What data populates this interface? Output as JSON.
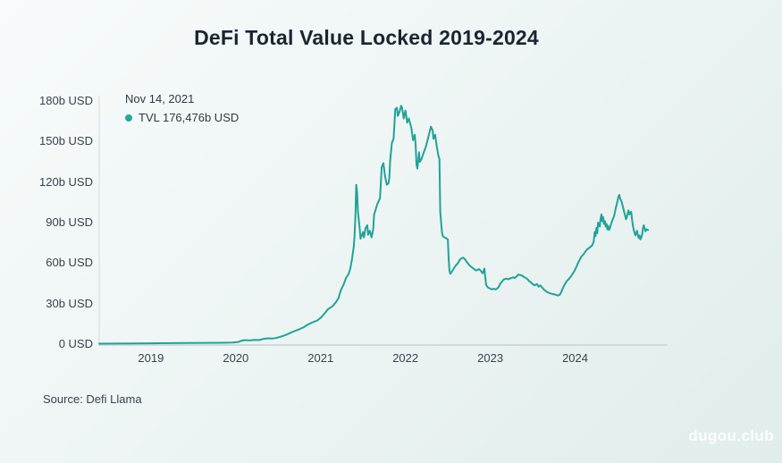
{
  "page": {
    "title": "DeFi Total Value Locked 2019-2024",
    "source_note": "Source: Defi Llama",
    "watermark": "dugou.club"
  },
  "tooltip": {
    "date": "Nov 14, 2021",
    "value_text": "TVL 176,476b USD",
    "marker_color": "#27a79a"
  },
  "colors": {
    "line": "#22a296",
    "x_axis_line": "#c6d3d2",
    "y_axis_line": "#dde7e6",
    "title_text": "#1c2430",
    "tick_text": "#39424b"
  },
  "chart_data": {
    "type": "line",
    "title": "DeFi Total Value Locked 2019-2024",
    "xlabel": "",
    "ylabel": "",
    "x_unit": "year (decimal)",
    "y_unit": "billions USD",
    "xlim": [
      2018.39,
      2025.09
    ],
    "ylim": [
      0,
      180
    ],
    "grid": false,
    "legend_position": "top-left",
    "x_ticks": [
      "2019",
      "2020",
      "2021",
      "2022",
      "2023",
      "2024"
    ],
    "y_ticks": [
      {
        "value": 0,
        "label": "0 USD"
      },
      {
        "value": 30,
        "label": "30b USD"
      },
      {
        "value": 60,
        "label": "60b USD"
      },
      {
        "value": 90,
        "label": "90b USD"
      },
      {
        "value": 120,
        "label": "120b USD"
      },
      {
        "value": 150,
        "label": "150b USD"
      },
      {
        "value": 180,
        "label": "180b USD"
      }
    ],
    "highlighted_point": {
      "date": "Nov 14, 2021",
      "x": 2021.95,
      "value_billions": 176.476
    },
    "series": [
      {
        "name": "TVL",
        "color": "#22a296",
        "points": [
          [
            2018.39,
            0.3
          ],
          [
            2018.57,
            0.4
          ],
          [
            2018.78,
            0.5
          ],
          [
            2018.99,
            0.6
          ],
          [
            2019.2,
            0.7
          ],
          [
            2019.41,
            0.8
          ],
          [
            2019.62,
            0.9
          ],
          [
            2019.84,
            1.0
          ],
          [
            2019.96,
            1.1
          ],
          [
            2020.03,
            1.6
          ],
          [
            2020.07,
            2.6
          ],
          [
            2020.11,
            3.0
          ],
          [
            2020.16,
            2.7
          ],
          [
            2020.22,
            3.2
          ],
          [
            2020.27,
            3.0
          ],
          [
            2020.32,
            3.8
          ],
          [
            2020.37,
            4.3
          ],
          [
            2020.43,
            4.1
          ],
          [
            2020.48,
            4.6
          ],
          [
            2020.53,
            5.5
          ],
          [
            2020.59,
            6.8
          ],
          [
            2020.64,
            8.2
          ],
          [
            2020.69,
            9.5
          ],
          [
            2020.74,
            10.8
          ],
          [
            2020.8,
            12.5
          ],
          [
            2020.85,
            14.5
          ],
          [
            2020.9,
            16.0
          ],
          [
            2020.96,
            17.5
          ],
          [
            2021.01,
            20.0
          ],
          [
            2021.05,
            23.0
          ],
          [
            2021.09,
            26.0
          ],
          [
            2021.14,
            28.0
          ],
          [
            2021.18,
            31.0
          ],
          [
            2021.21,
            34.0
          ],
          [
            2021.24,
            40.0
          ],
          [
            2021.27,
            44.0
          ],
          [
            2021.3,
            49.0
          ],
          [
            2021.33,
            52.0
          ],
          [
            2021.35,
            56.0
          ],
          [
            2021.37,
            63.0
          ],
          [
            2021.39,
            72.0
          ],
          [
            2021.4,
            80.0
          ],
          [
            2021.41,
            95.0
          ],
          [
            2021.42,
            118.0
          ],
          [
            2021.43,
            112.0
          ],
          [
            2021.44,
            98.0
          ],
          [
            2021.46,
            86.0
          ],
          [
            2021.47,
            78.0
          ],
          [
            2021.5,
            83.0
          ],
          [
            2021.51,
            79.0
          ],
          [
            2021.53,
            86.0
          ],
          [
            2021.55,
            88.0
          ],
          [
            2021.56,
            81.0
          ],
          [
            2021.58,
            84.0
          ],
          [
            2021.6,
            79.0
          ],
          [
            2021.62,
            85.0
          ],
          [
            2021.63,
            96.0
          ],
          [
            2021.65,
            100.0
          ],
          [
            2021.67,
            104.0
          ],
          [
            2021.7,
            108.0
          ],
          [
            2021.72,
            131.0
          ],
          [
            2021.74,
            134.0
          ],
          [
            2021.76,
            124.0
          ],
          [
            2021.78,
            118.0
          ],
          [
            2021.8,
            119.0
          ],
          [
            2021.81,
            123.0
          ],
          [
            2021.82,
            136.0
          ],
          [
            2021.84,
            149.0
          ],
          [
            2021.86,
            152.0
          ],
          [
            2021.88,
            174.0
          ],
          [
            2021.9,
            175.0
          ],
          [
            2021.91,
            169.0
          ],
          [
            2021.93,
            172.0
          ],
          [
            2021.95,
            176.5
          ],
          [
            2021.96,
            175.0
          ],
          [
            2021.98,
            167.0
          ],
          [
            2022.0,
            173.0
          ],
          [
            2022.02,
            164.0
          ],
          [
            2022.04,
            167.0
          ],
          [
            2022.07,
            160.0
          ],
          [
            2022.09,
            151.0
          ],
          [
            2022.11,
            155.0
          ],
          [
            2022.12,
            147.0
          ],
          [
            2022.13,
            133.0
          ],
          [
            2022.14,
            130.0
          ],
          [
            2022.16,
            142.0
          ],
          [
            2022.17,
            135.0
          ],
          [
            2022.19,
            137.0
          ],
          [
            2022.21,
            141.0
          ],
          [
            2022.24,
            146.0
          ],
          [
            2022.26,
            151.0
          ],
          [
            2022.28,
            156.0
          ],
          [
            2022.3,
            161.0
          ],
          [
            2022.32,
            158.0
          ],
          [
            2022.33,
            152.0
          ],
          [
            2022.35,
            155.0
          ],
          [
            2022.37,
            146.0
          ],
          [
            2022.39,
            139.0
          ],
          [
            2022.4,
            137.0
          ],
          [
            2022.41,
            98.0
          ],
          [
            2022.43,
            83.0
          ],
          [
            2022.44,
            80.0
          ],
          [
            2022.46,
            79.0
          ],
          [
            2022.48,
            78.5
          ],
          [
            2022.5,
            77.5
          ],
          [
            2022.51,
            62.0
          ],
          [
            2022.52,
            54.0
          ],
          [
            2022.53,
            52.0
          ],
          [
            2022.55,
            54.0
          ],
          [
            2022.57,
            56.0
          ],
          [
            2022.59,
            58.0
          ],
          [
            2022.62,
            60.0
          ],
          [
            2022.64,
            62.5
          ],
          [
            2022.66,
            63.5
          ],
          [
            2022.68,
            64.0
          ],
          [
            2022.7,
            63.0
          ],
          [
            2022.72,
            61.0
          ],
          [
            2022.74,
            59.5
          ],
          [
            2022.76,
            58.0
          ],
          [
            2022.78,
            57.0
          ],
          [
            2022.81,
            55.5
          ],
          [
            2022.83,
            54.5
          ],
          [
            2022.85,
            55.0
          ],
          [
            2022.87,
            55.5
          ],
          [
            2022.89,
            54.0
          ],
          [
            2022.91,
            52.5
          ],
          [
            2022.93,
            56.0
          ],
          [
            2022.94,
            50.0
          ],
          [
            2022.95,
            44.0
          ],
          [
            2022.97,
            42.0
          ],
          [
            2023.0,
            41.0
          ],
          [
            2023.02,
            40.5
          ],
          [
            2023.04,
            41.0
          ],
          [
            2023.06,
            40.5
          ],
          [
            2023.08,
            41.0
          ],
          [
            2023.1,
            42.5
          ],
          [
            2023.12,
            45.0
          ],
          [
            2023.14,
            46.5
          ],
          [
            2023.16,
            48.0
          ],
          [
            2023.19,
            48.5
          ],
          [
            2023.21,
            48.0
          ],
          [
            2023.23,
            48.5
          ],
          [
            2023.25,
            49.0
          ],
          [
            2023.27,
            49.5
          ],
          [
            2023.29,
            49.0
          ],
          [
            2023.31,
            50.0
          ],
          [
            2023.33,
            51.5
          ],
          [
            2023.36,
            51.0
          ],
          [
            2023.38,
            50.5
          ],
          [
            2023.4,
            49.5
          ],
          [
            2023.42,
            49.0
          ],
          [
            2023.44,
            48.0
          ],
          [
            2023.46,
            46.5
          ],
          [
            2023.48,
            45.5
          ],
          [
            2023.5,
            44.5
          ],
          [
            2023.52,
            43.5
          ],
          [
            2023.55,
            44.5
          ],
          [
            2023.57,
            42.5
          ],
          [
            2023.59,
            43.5
          ],
          [
            2023.61,
            42.0
          ],
          [
            2023.63,
            40.5
          ],
          [
            2023.65,
            39.5
          ],
          [
            2023.67,
            38.5
          ],
          [
            2023.69,
            38.0
          ],
          [
            2023.71,
            37.5
          ],
          [
            2023.74,
            37.0
          ],
          [
            2023.76,
            36.8
          ],
          [
            2023.78,
            36.3
          ],
          [
            2023.8,
            36.0
          ],
          [
            2023.82,
            36.5
          ],
          [
            2023.84,
            39.0
          ],
          [
            2023.86,
            42.0
          ],
          [
            2023.88,
            44.5
          ],
          [
            2023.9,
            46.5
          ],
          [
            2023.93,
            48.5
          ],
          [
            2023.95,
            50.0
          ],
          [
            2023.97,
            52.0
          ],
          [
            2023.99,
            54.0
          ],
          [
            2024.01,
            56.5
          ],
          [
            2024.03,
            59.5
          ],
          [
            2024.05,
            62.0
          ],
          [
            2024.07,
            64.5
          ],
          [
            2024.1,
            66.5
          ],
          [
            2024.12,
            68.5
          ],
          [
            2024.14,
            70.0
          ],
          [
            2024.16,
            71.0
          ],
          [
            2024.18,
            72.0
          ],
          [
            2024.2,
            73.0
          ],
          [
            2024.22,
            76.0
          ],
          [
            2024.23,
            83.0
          ],
          [
            2024.24,
            80.0
          ],
          [
            2024.25,
            86.0
          ],
          [
            2024.26,
            82.0
          ],
          [
            2024.27,
            90.0
          ],
          [
            2024.29,
            87.0
          ],
          [
            2024.3,
            93.0
          ],
          [
            2024.31,
            96.0
          ],
          [
            2024.32,
            91.0
          ],
          [
            2024.33,
            94.0
          ],
          [
            2024.34,
            89.0
          ],
          [
            2024.35,
            91.0
          ],
          [
            2024.36,
            87.0
          ],
          [
            2024.37,
            89.0
          ],
          [
            2024.38,
            85.0
          ],
          [
            2024.39,
            87.5
          ],
          [
            2024.4,
            84.5
          ],
          [
            2024.41,
            86.0
          ],
          [
            2024.43,
            90.0
          ],
          [
            2024.46,
            95.0
          ],
          [
            2024.48,
            101.0
          ],
          [
            2024.5,
            106.0
          ],
          [
            2024.51,
            109.0
          ],
          [
            2024.52,
            110.5
          ],
          [
            2024.53,
            108.0
          ],
          [
            2024.55,
            105.0
          ],
          [
            2024.57,
            100.0
          ],
          [
            2024.59,
            95.0
          ],
          [
            2024.6,
            92.5
          ],
          [
            2024.61,
            94.0
          ],
          [
            2024.62,
            97.0
          ],
          [
            2024.63,
            99.0
          ],
          [
            2024.64,
            96.0
          ],
          [
            2024.66,
            98.0
          ],
          [
            2024.67,
            93.0
          ],
          [
            2024.68,
            88.0
          ],
          [
            2024.69,
            85.0
          ],
          [
            2024.7,
            82.5
          ],
          [
            2024.71,
            80.5
          ],
          [
            2024.72,
            82.0
          ],
          [
            2024.73,
            84.0
          ],
          [
            2024.74,
            80.5
          ],
          [
            2024.75,
            78.5
          ],
          [
            2024.76,
            80.5
          ],
          [
            2024.77,
            77.5
          ],
          [
            2024.78,
            79.0
          ],
          [
            2024.79,
            81.0
          ],
          [
            2024.8,
            86.0
          ],
          [
            2024.81,
            88.0
          ],
          [
            2024.82,
            85.5
          ],
          [
            2024.83,
            83.5
          ],
          [
            2024.84,
            85.0
          ],
          [
            2024.86,
            84.5
          ]
        ]
      }
    ]
  }
}
